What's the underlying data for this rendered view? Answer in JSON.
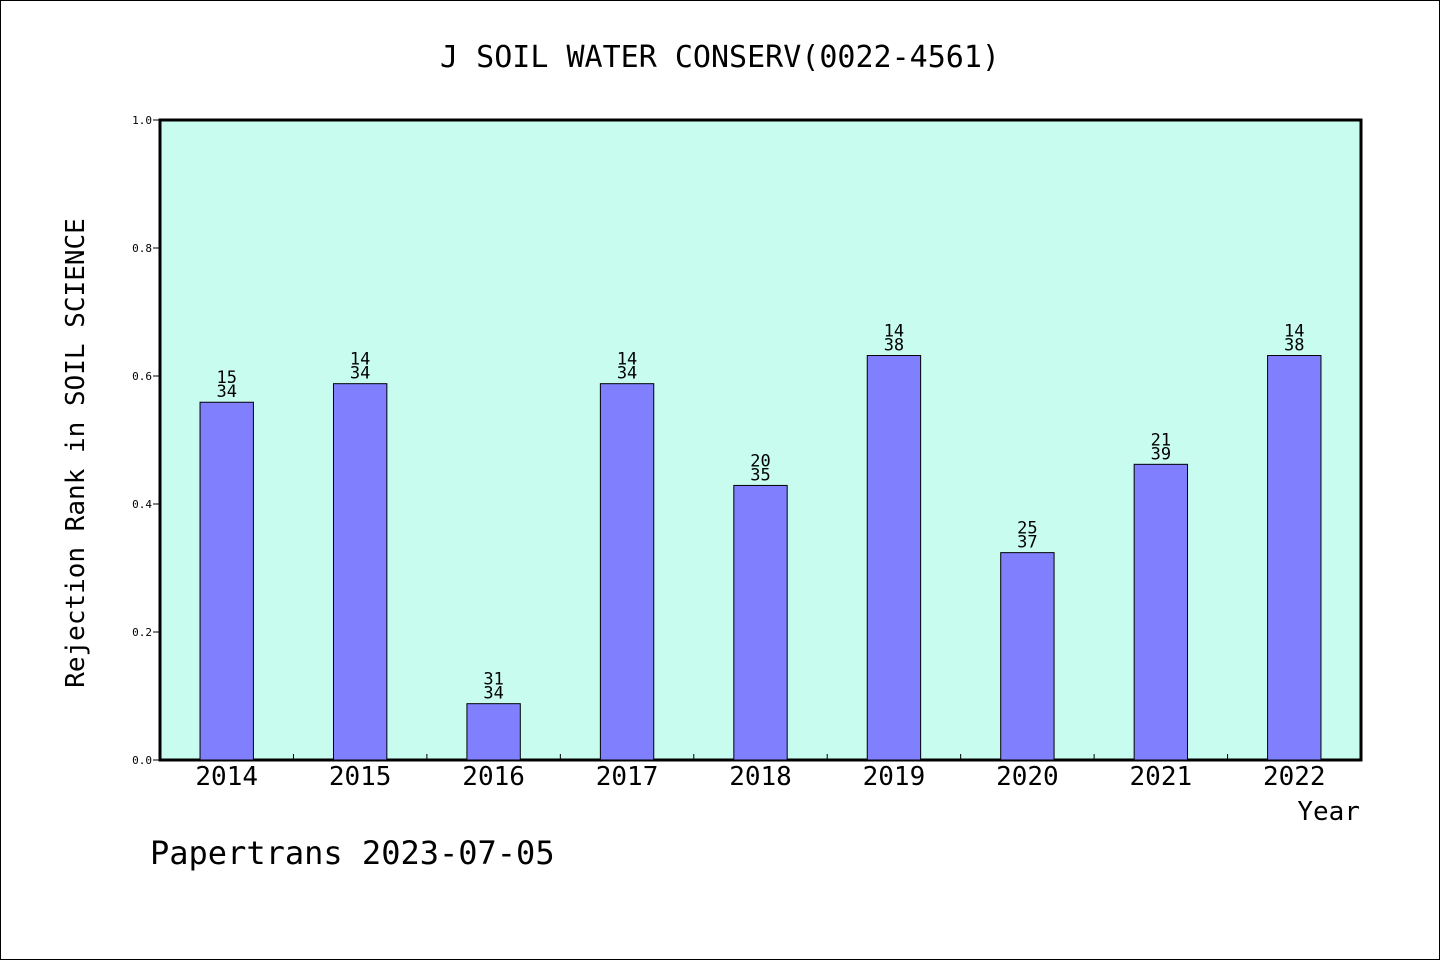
{
  "chart_data": {
    "type": "bar",
    "title": "J SOIL WATER CONSERV(0022-4561)",
    "ylabel": "Rejection Rank in SOIL SCIENCE",
    "xlabel": "Year",
    "categories": [
      "2014",
      "2015",
      "2016",
      "2017",
      "2018",
      "2019",
      "2020",
      "2021",
      "2022"
    ],
    "values": [
      0.559,
      0.588,
      0.088,
      0.588,
      0.429,
      0.632,
      0.324,
      0.462,
      0.632
    ],
    "bar_labels": [
      [
        "15",
        "34"
      ],
      [
        "14",
        "34"
      ],
      [
        "31",
        "34"
      ],
      [
        "14",
        "34"
      ],
      [
        "20",
        "35"
      ],
      [
        "14",
        "38"
      ],
      [
        "25",
        "37"
      ],
      [
        "21",
        "39"
      ],
      [
        "14",
        "38"
      ]
    ],
    "ylim": [
      0.0,
      1.0
    ],
    "yticks": [
      "0.0",
      "0.2",
      "0.4",
      "0.6",
      "0.8",
      "1.0"
    ],
    "grid": false,
    "legend": "none",
    "colors": {
      "plot_background": "#c8fcee",
      "bar_fill": "#8080ff",
      "bar_stroke": "#000000",
      "axis": "#000000"
    }
  },
  "footer": {
    "text": "Papertrans 2023-07-05"
  }
}
